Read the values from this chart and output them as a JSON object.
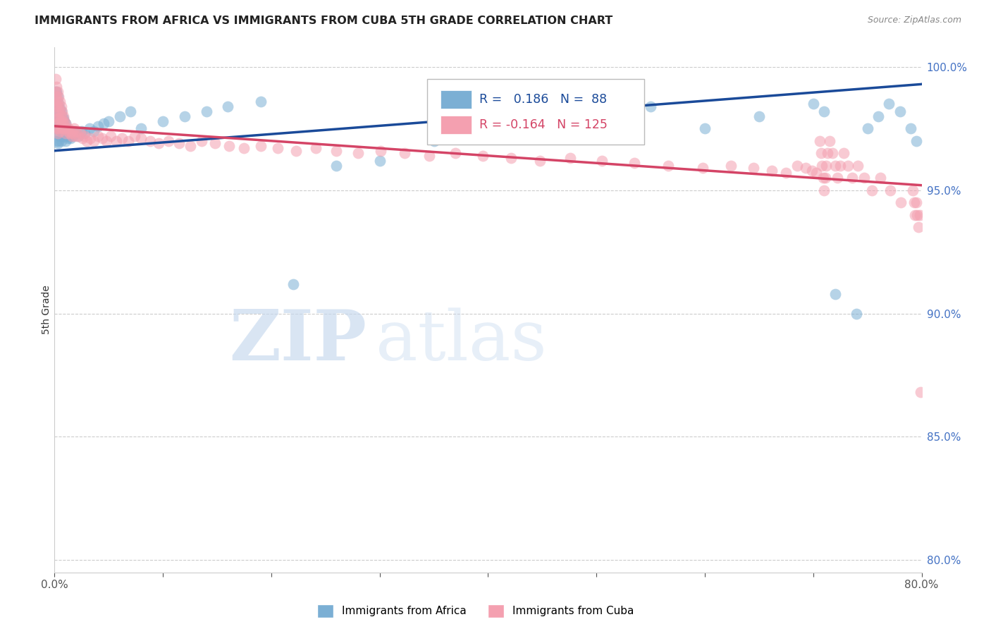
{
  "title": "IMMIGRANTS FROM AFRICA VS IMMIGRANTS FROM CUBA 5TH GRADE CORRELATION CHART",
  "source": "Source: ZipAtlas.com",
  "ylabel": "5th Grade",
  "xlim": [
    0.0,
    0.8
  ],
  "ylim": [
    0.795,
    1.008
  ],
  "xticks": [
    0.0,
    0.1,
    0.2,
    0.3,
    0.4,
    0.5,
    0.6,
    0.7,
    0.8
  ],
  "yticks_right": [
    0.8,
    0.85,
    0.9,
    0.95,
    1.0
  ],
  "yticklabels_right": [
    "80.0%",
    "85.0%",
    "90.0%",
    "95.0%",
    "100.0%"
  ],
  "africa_R": 0.186,
  "africa_N": 88,
  "cuba_R": -0.164,
  "cuba_N": 125,
  "africa_color": "#7bafd4",
  "cuba_color": "#f4a0b0",
  "africa_line_color": "#1a4a99",
  "cuba_line_color": "#d44466",
  "africa_x": [
    0.001,
    0.001,
    0.001,
    0.001,
    0.001,
    0.002,
    0.002,
    0.002,
    0.002,
    0.002,
    0.002,
    0.003,
    0.003,
    0.003,
    0.003,
    0.003,
    0.003,
    0.004,
    0.004,
    0.004,
    0.004,
    0.004,
    0.005,
    0.005,
    0.005,
    0.005,
    0.006,
    0.006,
    0.006,
    0.006,
    0.007,
    0.007,
    0.007,
    0.008,
    0.008,
    0.008,
    0.009,
    0.009,
    0.01,
    0.01,
    0.01,
    0.011,
    0.011,
    0.012,
    0.012,
    0.013,
    0.014,
    0.015,
    0.016,
    0.017,
    0.018,
    0.02,
    0.022,
    0.025,
    0.028,
    0.032,
    0.036,
    0.04,
    0.045,
    0.05,
    0.06,
    0.07,
    0.08,
    0.1,
    0.12,
    0.14,
    0.16,
    0.19,
    0.22,
    0.26,
    0.3,
    0.35,
    0.4,
    0.45,
    0.5,
    0.55,
    0.6,
    0.65,
    0.7,
    0.71,
    0.72,
    0.74,
    0.75,
    0.76,
    0.77,
    0.78,
    0.79,
    0.795
  ],
  "africa_y": [
    0.99,
    0.985,
    0.98,
    0.978,
    0.975,
    0.99,
    0.985,
    0.982,
    0.978,
    0.975,
    0.97,
    0.988,
    0.984,
    0.98,
    0.977,
    0.973,
    0.969,
    0.985,
    0.982,
    0.978,
    0.975,
    0.97,
    0.983,
    0.979,
    0.976,
    0.972,
    0.982,
    0.978,
    0.974,
    0.97,
    0.98,
    0.977,
    0.973,
    0.979,
    0.975,
    0.972,
    0.978,
    0.974,
    0.977,
    0.973,
    0.97,
    0.975,
    0.972,
    0.974,
    0.971,
    0.973,
    0.972,
    0.971,
    0.973,
    0.972,
    0.974,
    0.973,
    0.972,
    0.974,
    0.973,
    0.975,
    0.974,
    0.976,
    0.977,
    0.978,
    0.98,
    0.982,
    0.975,
    0.978,
    0.98,
    0.982,
    0.984,
    0.986,
    0.912,
    0.96,
    0.962,
    0.97,
    0.975,
    0.98,
    0.982,
    0.984,
    0.975,
    0.98,
    0.985,
    0.982,
    0.908,
    0.9,
    0.975,
    0.98,
    0.985,
    0.982,
    0.975,
    0.97
  ],
  "cuba_x": [
    0.001,
    0.001,
    0.001,
    0.001,
    0.002,
    0.002,
    0.002,
    0.002,
    0.002,
    0.003,
    0.003,
    0.003,
    0.003,
    0.003,
    0.004,
    0.004,
    0.004,
    0.004,
    0.005,
    0.005,
    0.005,
    0.005,
    0.006,
    0.006,
    0.006,
    0.007,
    0.007,
    0.007,
    0.008,
    0.008,
    0.009,
    0.009,
    0.01,
    0.01,
    0.011,
    0.012,
    0.013,
    0.014,
    0.015,
    0.016,
    0.017,
    0.018,
    0.019,
    0.02,
    0.022,
    0.024,
    0.026,
    0.028,
    0.03,
    0.033,
    0.036,
    0.04,
    0.044,
    0.048,
    0.052,
    0.057,
    0.062,
    0.068,
    0.074,
    0.08,
    0.088,
    0.096,
    0.105,
    0.115,
    0.125,
    0.136,
    0.148,
    0.161,
    0.175,
    0.19,
    0.206,
    0.223,
    0.241,
    0.26,
    0.28,
    0.301,
    0.323,
    0.346,
    0.37,
    0.395,
    0.421,
    0.448,
    0.476,
    0.505,
    0.535,
    0.566,
    0.598,
    0.624,
    0.645,
    0.662,
    0.675,
    0.685,
    0.693,
    0.699,
    0.703,
    0.706,
    0.707,
    0.708,
    0.709,
    0.71,
    0.711,
    0.712,
    0.713,
    0.715,
    0.718,
    0.72,
    0.722,
    0.725,
    0.728,
    0.732,
    0.736,
    0.741,
    0.747,
    0.754,
    0.762,
    0.771,
    0.781,
    0.792,
    0.793,
    0.794,
    0.795,
    0.796,
    0.797,
    0.798,
    0.799
  ],
  "cuba_y": [
    0.995,
    0.99,
    0.985,
    0.98,
    0.992,
    0.988,
    0.984,
    0.979,
    0.975,
    0.99,
    0.986,
    0.982,
    0.977,
    0.973,
    0.988,
    0.984,
    0.979,
    0.975,
    0.986,
    0.982,
    0.978,
    0.974,
    0.984,
    0.98,
    0.976,
    0.982,
    0.978,
    0.975,
    0.98,
    0.977,
    0.978,
    0.975,
    0.977,
    0.973,
    0.975,
    0.974,
    0.975,
    0.973,
    0.974,
    0.972,
    0.973,
    0.975,
    0.972,
    0.974,
    0.972,
    0.973,
    0.971,
    0.972,
    0.97,
    0.971,
    0.97,
    0.972,
    0.971,
    0.97,
    0.972,
    0.97,
    0.971,
    0.97,
    0.972,
    0.971,
    0.97,
    0.969,
    0.97,
    0.969,
    0.968,
    0.97,
    0.969,
    0.968,
    0.967,
    0.968,
    0.967,
    0.966,
    0.967,
    0.966,
    0.965,
    0.966,
    0.965,
    0.964,
    0.965,
    0.964,
    0.963,
    0.962,
    0.963,
    0.962,
    0.961,
    0.96,
    0.959,
    0.96,
    0.959,
    0.958,
    0.957,
    0.96,
    0.959,
    0.958,
    0.957,
    0.97,
    0.965,
    0.96,
    0.955,
    0.95,
    0.955,
    0.96,
    0.965,
    0.97,
    0.965,
    0.96,
    0.955,
    0.96,
    0.965,
    0.96,
    0.955,
    0.96,
    0.955,
    0.95,
    0.955,
    0.95,
    0.945,
    0.95,
    0.945,
    0.94,
    0.945,
    0.94,
    0.935,
    0.94,
    0.868
  ]
}
